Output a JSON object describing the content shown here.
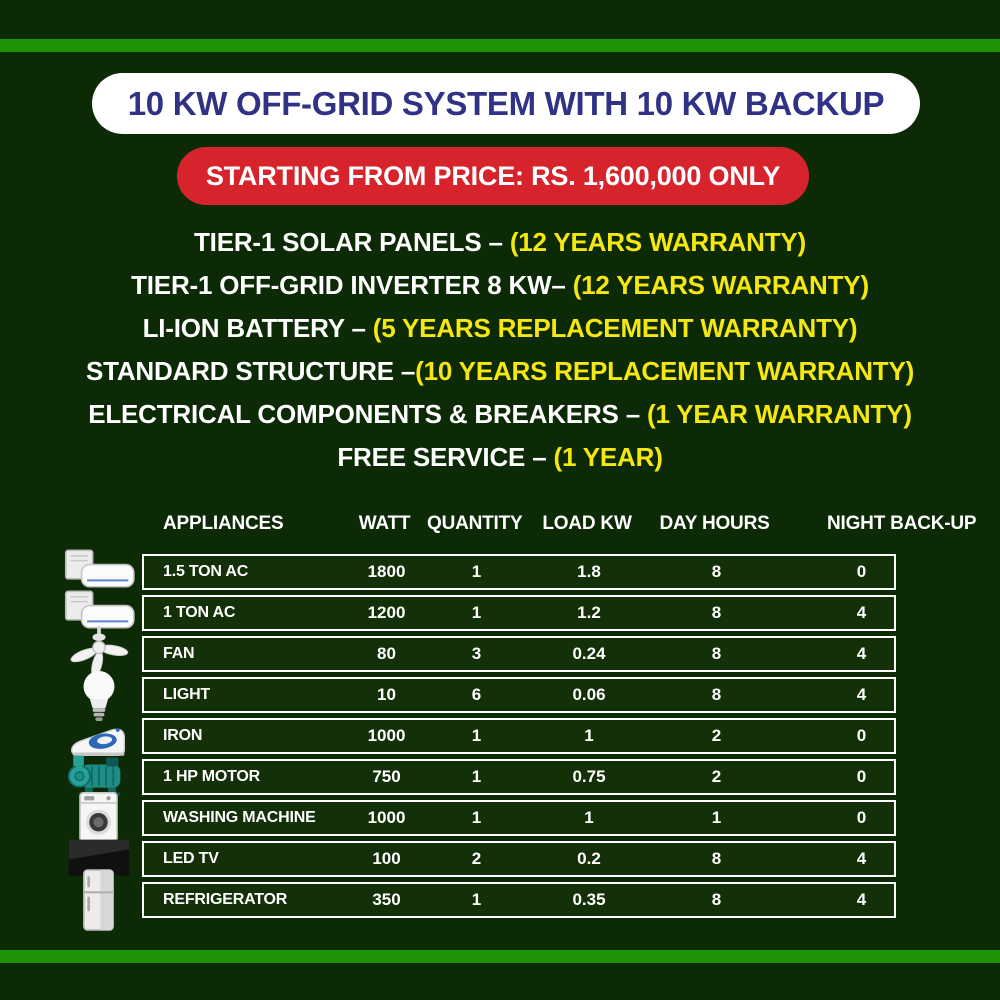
{
  "header": {
    "title": "10 KW OFF-GRID SYSTEM WITH 10 KW BACKUP",
    "price": "STARTING FROM PRICE: RS. 1,600,000 ONLY"
  },
  "features": [
    {
      "label": "TIER-1 SOLAR PANELS – ",
      "highlight": "(12 YEARS WARRANTY)"
    },
    {
      "label": "TIER-1 OFF-GRID INVERTER 8 KW– ",
      "highlight": "(12 YEARS WARRANTY)"
    },
    {
      "label": "LI-ION BATTERY – ",
      "highlight": "(5 YEARS REPLACEMENT WARRANTY)"
    },
    {
      "label": "STANDARD STRUCTURE –",
      "highlight": "(10 YEARS REPLACEMENT WARRANTY)"
    },
    {
      "label": "ELECTRICAL COMPONENTS & BREAKERS – ",
      "highlight": "(1 YEAR WARRANTY)"
    },
    {
      "label": "FREE SERVICE – ",
      "highlight": "(1 YEAR)"
    }
  ],
  "table": {
    "headers": [
      "APPLIANCES",
      "WATT",
      "QUANTITY",
      "LOAD KW",
      "DAY HOURS",
      "NIGHT BACK-UP"
    ],
    "rows": [
      {
        "icon": "ac-icon",
        "name": "1.5 TON AC",
        "watt": "1800",
        "quantity": "1",
        "load_kw": "1.8",
        "day_hours": "8",
        "night_backup": "0"
      },
      {
        "icon": "ac-icon",
        "name": "1 TON AC",
        "watt": "1200",
        "quantity": "1",
        "load_kw": "1.2",
        "day_hours": "8",
        "night_backup": "4"
      },
      {
        "icon": "fan-icon",
        "name": "FAN",
        "watt": "80",
        "quantity": "3",
        "load_kw": "0.24",
        "day_hours": "8",
        "night_backup": "4"
      },
      {
        "icon": "bulb-icon",
        "name": "LIGHT",
        "watt": "10",
        "quantity": "6",
        "load_kw": "0.06",
        "day_hours": "8",
        "night_backup": "4"
      },
      {
        "icon": "iron-icon",
        "name": "IRON",
        "watt": "1000",
        "quantity": "1",
        "load_kw": "1",
        "day_hours": "2",
        "night_backup": "0"
      },
      {
        "icon": "motor-icon",
        "name": "1 HP MOTOR",
        "watt": "750",
        "quantity": "1",
        "load_kw": "0.75",
        "day_hours": "2",
        "night_backup": "0"
      },
      {
        "icon": "washing-machine-icon",
        "name": "WASHING MACHINE",
        "watt": "1000",
        "quantity": "1",
        "load_kw": "1",
        "day_hours": "1",
        "night_backup": "0"
      },
      {
        "icon": "tv-icon",
        "name": "LED TV",
        "watt": "100",
        "quantity": "2",
        "load_kw": "0.2",
        "day_hours": "8",
        "night_backup": "4"
      },
      {
        "icon": "fridge-icon",
        "name": "REFRIGERATOR",
        "watt": "350",
        "quantity": "1",
        "load_kw": "0.35",
        "day_hours": "8",
        "night_backup": "4"
      }
    ]
  },
  "chart_data": {
    "type": "table",
    "title": "10 KW OFF-GRID SYSTEM WITH 10 KW BACKUP",
    "columns": [
      "APPLIANCES",
      "WATT",
      "QUANTITY",
      "LOAD KW",
      "DAY HOURS",
      "NIGHT BACK-UP"
    ],
    "rows": [
      [
        "1.5 TON AC",
        1800,
        1,
        1.8,
        8,
        0
      ],
      [
        "1 TON AC",
        1200,
        1,
        1.2,
        8,
        4
      ],
      [
        "FAN",
        80,
        3,
        0.24,
        8,
        4
      ],
      [
        "LIGHT",
        10,
        6,
        0.06,
        8,
        4
      ],
      [
        "IRON",
        1000,
        1,
        1,
        2,
        0
      ],
      [
        "1 HP MOTOR",
        750,
        1,
        0.75,
        2,
        0
      ],
      [
        "WASHING MACHINE",
        1000,
        1,
        1,
        1,
        0
      ],
      [
        "LED TV",
        100,
        2,
        0.2,
        8,
        4
      ],
      [
        "REFRIGERATOR",
        350,
        1,
        0.35,
        8,
        4
      ]
    ]
  },
  "colors": {
    "background": "#0d2a06",
    "accent_stripe": "#1f9206",
    "title_pill_bg": "#ffffff",
    "title_text": "#2f3285",
    "price_pill_bg": "#d7242c",
    "price_text": "#ffffff",
    "feature_text": "#ffffff",
    "feature_highlight": "#f5e711",
    "table_border": "#ffffff",
    "row_bg": "#143009"
  }
}
